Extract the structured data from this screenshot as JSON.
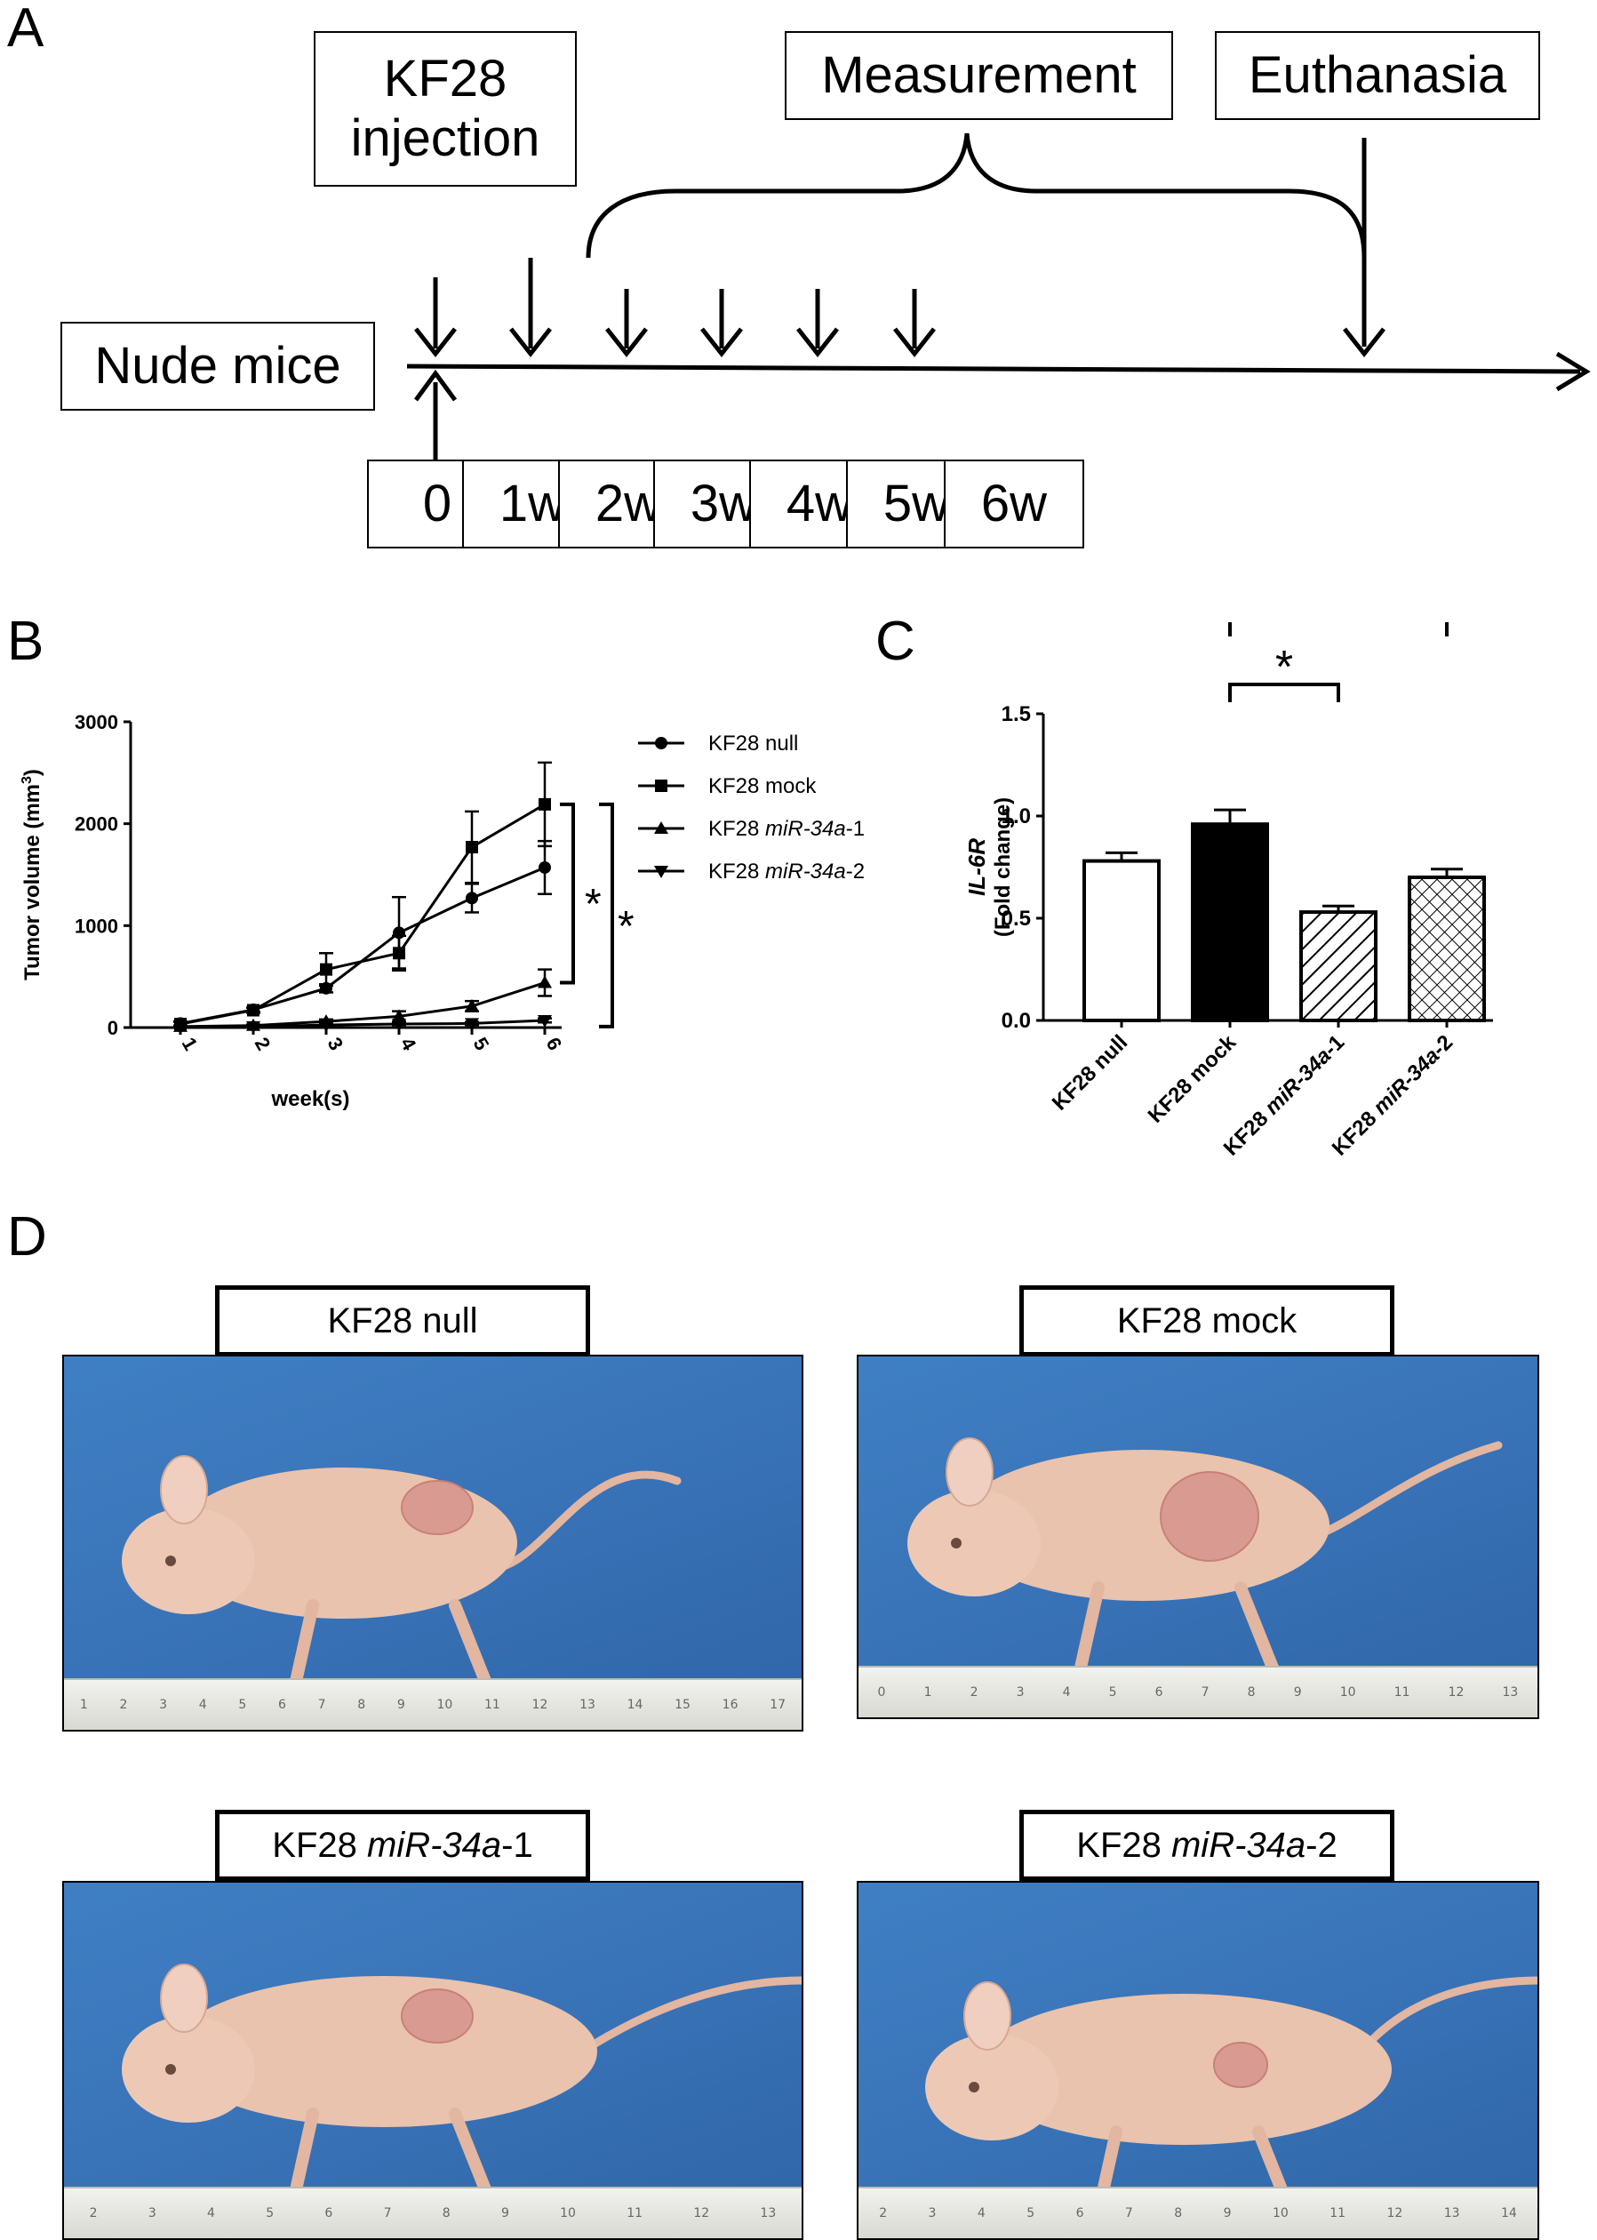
{
  "panels": {
    "a": "A",
    "b": "B",
    "c": "C",
    "d": "D"
  },
  "timeline": {
    "injection_line1": "KF28",
    "injection_line2": "injection",
    "measurement": "Measurement",
    "euthanasia": "Euthanasia",
    "subject": "Nude mice",
    "weeks": [
      "0",
      "1w",
      "2w",
      "3w",
      "4w",
      "5w",
      "6w"
    ]
  },
  "chart_b": {
    "ylabel_main": "Tumor volume (mm",
    "ylabel_sup": "3",
    "ylabel_end": ")",
    "xlabel": "week(s)",
    "star": "*"
  },
  "chart_c": {
    "ylabel_gene": "IL-6R",
    "ylabel_sub": "(Fold change)",
    "star": "*"
  },
  "chart_data": [
    {
      "type": "line",
      "x": [
        1,
        2,
        3,
        4,
        5,
        6
      ],
      "xlabel": "week(s)",
      "ylabel": "Tumor volume (mm3)",
      "ylim": [
        0,
        3000
      ],
      "yticks": [
        "0",
        "1000",
        "2000",
        "3000"
      ],
      "series": [
        {
          "name": "KF28 null",
          "prefix": "KF28 ",
          "italic": "",
          "suffix": "null",
          "marker": "circle",
          "values": [
            40,
            175,
            385,
            930,
            1270,
            1570
          ],
          "errors": [
            20,
            20,
            40,
            350,
            140,
            260
          ]
        },
        {
          "name": "KF28 mock",
          "prefix": "KF28 ",
          "italic": "",
          "suffix": "mock",
          "marker": "square",
          "values": [
            35,
            170,
            570,
            730,
            1770,
            2190
          ],
          "errors": [
            20,
            25,
            160,
            170,
            350,
            410
          ]
        },
        {
          "name": "KF28 miR-34a-1",
          "prefix": "KF28 ",
          "italic": "miR-34a",
          "suffix": "-1",
          "marker": "triangle-up",
          "values": [
            10,
            20,
            60,
            110,
            210,
            440
          ],
          "errors": [
            5,
            10,
            20,
            50,
            50,
            130
          ]
        },
        {
          "name": "KF28 miR-34a-2",
          "prefix": "KF28 ",
          "italic": "miR-34a",
          "suffix": "-2",
          "marker": "triangle-down",
          "values": [
            5,
            10,
            25,
            35,
            40,
            70
          ],
          "errors": [
            3,
            5,
            10,
            10,
            15,
            20
          ]
        }
      ],
      "annotations": [
        "*",
        "*"
      ]
    },
    {
      "type": "bar",
      "categories": [
        "KF28 null",
        "KF28 mock",
        "KF28 miR-34a-1",
        "KF28 miR-34a-2"
      ],
      "category_parts": [
        {
          "prefix": "KF28 ",
          "italic": "",
          "suffix": "null"
        },
        {
          "prefix": "KF28 ",
          "italic": "",
          "suffix": "mock"
        },
        {
          "prefix": "KF28 ",
          "italic": "miR-34a",
          "suffix": "-1"
        },
        {
          "prefix": "KF28 ",
          "italic": "miR-34a",
          "suffix": "-2"
        }
      ],
      "values": [
        0.78,
        0.96,
        0.53,
        0.7
      ],
      "errors": [
        0.04,
        0.07,
        0.03,
        0.04
      ],
      "fills": [
        "white",
        "black",
        "diagonal-hatch",
        "cross-hatch"
      ],
      "ylabel": "IL-6R (Fold change)",
      "ylim": [
        0,
        1.5
      ],
      "yticks": [
        "0.0",
        "0.5",
        "1.0",
        "1.5"
      ],
      "annotations": [
        "*",
        "*"
      ]
    }
  ],
  "photos": [
    {
      "prefix": "KF28 ",
      "italic": "",
      "suffix": "null",
      "ruler": [
        "1",
        "2",
        "3",
        "4",
        "5",
        "6",
        "7",
        "8",
        "9",
        "10",
        "11",
        "12",
        "13",
        "14",
        "15",
        "16",
        "17"
      ]
    },
    {
      "prefix": "KF28 ",
      "italic": "",
      "suffix": "mock",
      "ruler": [
        "0",
        "1",
        "2",
        "3",
        "4",
        "5",
        "6",
        "7",
        "8",
        "9",
        "10",
        "11",
        "12",
        "13"
      ]
    },
    {
      "prefix": "KF28 ",
      "italic": "miR-34a",
      "suffix": "-1",
      "ruler": [
        "2",
        "3",
        "4",
        "5",
        "6",
        "7",
        "8",
        "9",
        "10",
        "11",
        "12",
        "13"
      ]
    },
    {
      "prefix": "KF28 ",
      "italic": "miR-34a",
      "suffix": "-2",
      "ruler": [
        "2",
        "3",
        "4",
        "5",
        "6",
        "7",
        "8",
        "9",
        "10",
        "11",
        "12",
        "13",
        "14"
      ]
    }
  ],
  "colors": {
    "ink": "#000000",
    "photo_bg": "#3a74b8",
    "mouse_skin": "#e9c3ad",
    "tumor": "#d99a92"
  }
}
